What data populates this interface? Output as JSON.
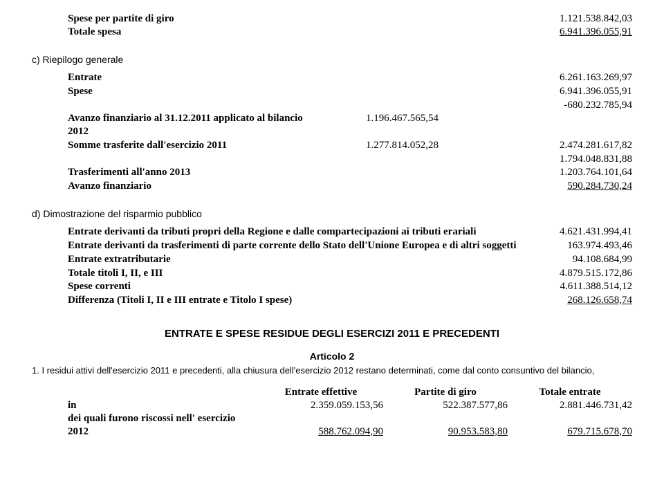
{
  "top": {
    "r1_label": "Spese per partite di giro",
    "r1_val": "1.121.538.842,03",
    "r2_label": "Totale spesa",
    "r2_val": "6.941.396.055,91"
  },
  "sectionC": {
    "title": "c) Riepilogo generale",
    "rows": [
      {
        "label": "Entrate",
        "mid1": "",
        "mid2": "",
        "right": "6.261.163.269,97"
      },
      {
        "label": "Spese",
        "mid1": "",
        "mid2": "",
        "right": "6.941.396.055,91"
      },
      {
        "label": "",
        "mid1": "",
        "mid2": "",
        "right": "-680.232.785,94"
      },
      {
        "label": "Avanzo finanziario al 31.12.2011 applicato al bilancio 2012",
        "mid1": "1.196.467.565,54",
        "mid2": "",
        "right": ""
      },
      {
        "label": "Somme trasferite dall'esercizio 2011",
        "mid1": "1.277.814.052,28",
        "mid2": "",
        "right": "2.474.281.617,82"
      },
      {
        "label": "",
        "mid1": "",
        "mid2": "",
        "right": "1.794.048.831,88"
      },
      {
        "label": "Trasferimenti all'anno 2013",
        "mid1": "",
        "mid2": "",
        "right": "1.203.764.101,64"
      },
      {
        "label": "Avanzo finanziario",
        "mid1": "",
        "mid2": "",
        "right": "590.284.730,24",
        "underline": true
      }
    ]
  },
  "sectionD": {
    "title": "d) Dimostrazione del risparmio pubblico",
    "rows": [
      {
        "label": "Entrate derivanti da tributi propri della Regione e dalle compartecipazioni ai tributi erariali",
        "right": "4.621.431.994,41"
      },
      {
        "label": "Entrate derivanti da trasferimenti di parte corrente dello Stato dell'Unione Europea e di altri soggetti",
        "right": "163.974.493,46"
      },
      {
        "label": "Entrate extratributarie",
        "right": "94.108.684,99"
      },
      {
        "label": "Totale titoli I, II, e III",
        "right": "4.879.515.172,86"
      },
      {
        "label": "Spese correnti",
        "right": "4.611.388.514,12"
      },
      {
        "label": "Differenza (Titoli I, II e III entrate e Titolo I spese)",
        "right": "268.126.658,74",
        "underline": true
      }
    ]
  },
  "residue": {
    "title": "ENTRATE E SPESE RESIDUE DEGLI ESERCIZI 2011 E PRECEDENTI",
    "articleLabel": "Articolo 2",
    "articleBody": "1. I residui attivi dell'esercizio 2011 e precedenti, alla chiusura dell'esercizio 2012 restano determinati, come dal conto consuntivo del bilancio,",
    "headers": [
      "Entrate effettive",
      "Partite di giro",
      "Totale entrate"
    ],
    "rows": [
      {
        "label": "in",
        "c1": "2.359.059.153,56",
        "c2": "522.387.577,86",
        "c3": "2.881.446.731,42"
      },
      {
        "label": "dei quali furono riscossi nell' esercizio 2012",
        "c1": "588.762.094,90",
        "c2": "90.953.583,80",
        "c3": "679.715.678,70",
        "underline": true
      }
    ]
  }
}
